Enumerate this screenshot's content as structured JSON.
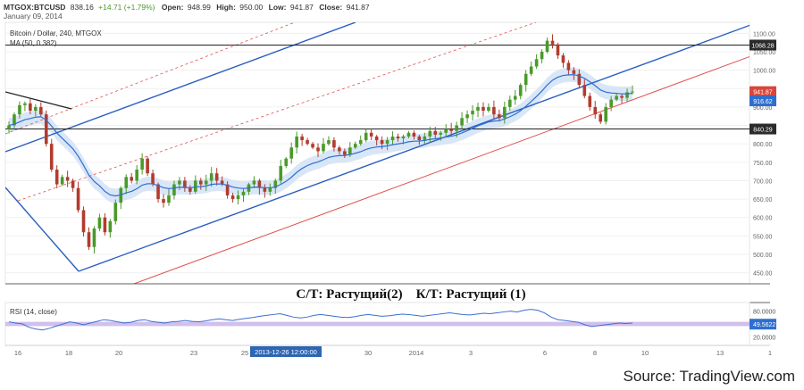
{
  "header": {
    "symbol": "MTGOX:BTCUSD",
    "last": "838.16",
    "change": "+14.71 (+1.79%)",
    "open_label": "Open:",
    "open": "948.99",
    "high_label": "High:",
    "high": "950.00",
    "low_label": "Low:",
    "low": "941.87",
    "close_label": "Close:",
    "close": "941.87",
    "date": "January 09, 2014"
  },
  "legend": {
    "title": "Bitcoin / Dollar, 240, MTGOX",
    "ma": "MA (50, 0.382)"
  },
  "annotation": {
    "text": "С/Т: Растущий(2)    К/Т: Растущий (1)"
  },
  "rsi": {
    "label": "RSI (14, close)",
    "levels": [
      "80.0000",
      "49.5622",
      "20.0000"
    ]
  },
  "crosshair_label": "2013-12-26 12:00:00",
  "source": "Source: TradingView.com",
  "colors": {
    "up": "#4a9a2a",
    "down": "#b23b2e",
    "channel_blue": "#2a5fc0",
    "channel_red": "#e05050",
    "ma": "#2e6fd0",
    "ma_band": "#cfe0f5",
    "rsi_line": "#3a6fd0",
    "rsi_band": "#c9b4ea",
    "price_badge": "#d9463a",
    "ma_badge": "#2e6fd0"
  },
  "chart_data": {
    "type": "candlestick",
    "ylim": [
      420,
      1130
    ],
    "y_ticks": [
      450,
      500,
      550,
      600,
      650,
      700,
      750,
      800,
      850,
      900,
      950,
      1000,
      1050,
      1100
    ],
    "y_tick_labels": [
      "450.00",
      "500.00",
      "550.00",
      "600.00",
      "650.00",
      "700.00",
      "750.00",
      "800.00",
      "850.00",
      "900.00",
      "950.00",
      "1000.00",
      "1050.00",
      "1100.00"
    ],
    "x_ticks": [
      "16",
      "18",
      "20",
      "23",
      "25",
      "30",
      "2014",
      "3",
      "6",
      "8",
      "10",
      "13",
      "1"
    ],
    "horizontal_levels": [
      {
        "value": 1068.28,
        "label": "1068.28"
      },
      {
        "value": 840.29,
        "label": "840.29"
      }
    ],
    "price_badges": [
      {
        "value": 941.87,
        "label": "941.87",
        "kind": "price"
      },
      {
        "value": 916.62,
        "label": "916.62",
        "kind": "ma"
      }
    ],
    "closes": [
      850,
      880,
      905,
      910,
      890,
      900,
      880,
      800,
      730,
      690,
      710,
      700,
      680,
      620,
      560,
      520,
      570,
      600,
      560,
      590,
      640,
      680,
      710,
      700,
      730,
      760,
      720,
      690,
      650,
      640,
      660,
      690,
      700,
      680,
      670,
      700,
      690,
      700,
      720,
      700,
      690,
      660,
      650,
      660,
      670,
      690,
      700,
      680,
      670,
      680,
      700,
      740,
      760,
      790,
      820,
      810,
      800,
      790,
      780,
      800,
      810,
      790,
      780,
      770,
      790,
      800,
      810,
      830,
      820,
      810,
      800,
      810,
      820,
      815,
      820,
      830,
      820,
      810,
      820,
      835,
      825,
      830,
      840,
      835,
      850,
      870,
      880,
      890,
      900,
      890,
      900,
      880,
      870,
      900,
      920,
      930,
      960,
      990,
      1010,
      1030,
      1050,
      1080,
      1070,
      1040,
      1020,
      1000,
      990,
      960,
      930,
      900,
      880,
      860,
      900,
      920,
      930,
      925,
      940,
      942
    ]
  },
  "rsi_data": [
    55,
    52,
    50,
    42,
    38,
    36,
    40,
    45,
    50,
    55,
    52,
    48,
    52,
    56,
    60,
    58,
    55,
    52,
    54,
    58,
    60,
    56,
    54,
    52,
    55,
    56,
    58,
    56,
    55,
    57,
    60,
    62,
    60,
    58,
    61,
    63,
    65,
    68,
    70,
    72,
    74,
    70,
    66,
    64,
    66,
    70,
    72,
    70,
    68,
    66,
    65,
    67,
    70,
    72,
    70,
    68,
    69,
    71,
    73,
    72,
    70,
    68,
    70,
    72,
    74,
    76,
    74,
    72,
    71,
    73,
    75,
    74,
    76,
    78,
    80,
    78,
    82,
    84,
    82,
    76,
    66,
    60,
    58,
    56,
    54,
    48,
    44,
    46,
    48,
    50,
    52,
    51,
    52
  ]
}
